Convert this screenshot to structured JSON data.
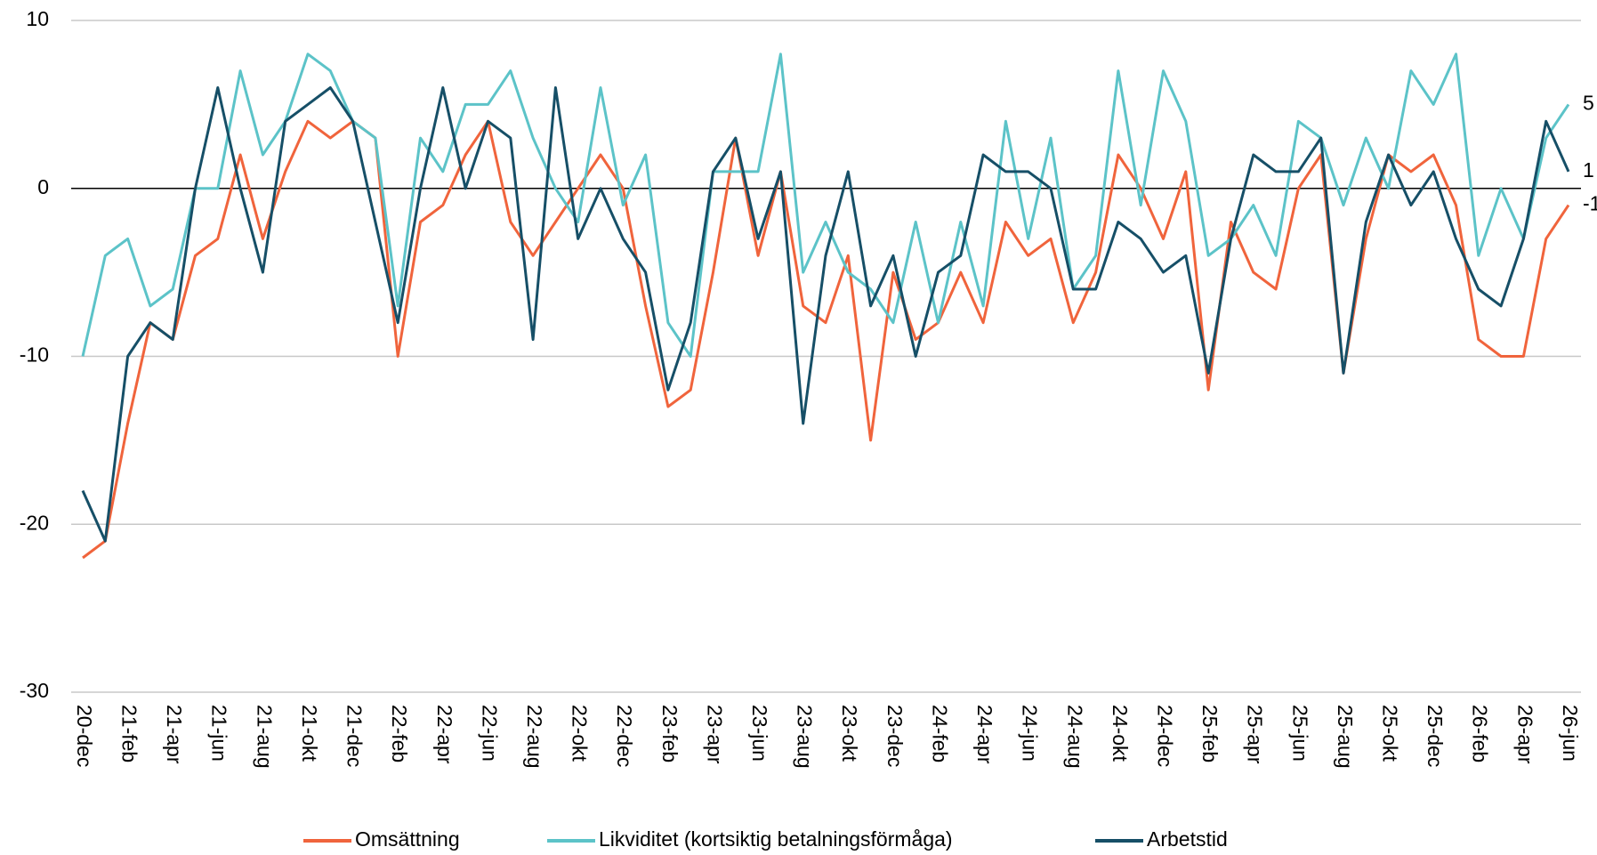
{
  "chart_data": {
    "type": "line",
    "categories": [
      "20-dec",
      null,
      "21-feb",
      null,
      "21-apr",
      null,
      "21-jun",
      null,
      "21-aug",
      null,
      "21-okt",
      null,
      "21-dec",
      null,
      "22-feb",
      null,
      "22-apr",
      null,
      "22-jun",
      null,
      "22-aug",
      null,
      "22-okt",
      null,
      "22-dec",
      null,
      "23-feb",
      null,
      "23-apr",
      null,
      "23-jun",
      null,
      "23-aug",
      null,
      "23-okt",
      null,
      "23-dec",
      null,
      "24-feb",
      null,
      "24-apr",
      null,
      "24-jun",
      null,
      "24-aug",
      null,
      "24-okt",
      null,
      "24-dec",
      null,
      "25-feb",
      null,
      "25-apr",
      null,
      "25-jun",
      null,
      "25-aug",
      null,
      "25-okt",
      null,
      "25-dec",
      null,
      "26-feb",
      null,
      "26-apr",
      null,
      "26-jun"
    ],
    "series": [
      {
        "name": "Omsättning",
        "color": "#f0643c",
        "values": [
          -22,
          -21,
          -14,
          -8,
          -9,
          -4,
          -3,
          2,
          -3,
          1,
          4,
          3,
          4,
          3,
          -10,
          -2,
          -1,
          2,
          4,
          -2,
          -4,
          -2,
          0,
          2,
          0,
          -7,
          -13,
          -12,
          -5,
          3,
          -4,
          1,
          -7,
          -8,
          -4,
          -15,
          -5,
          -9,
          -8,
          -5,
          -8,
          -2,
          -4,
          -3,
          -8,
          -5,
          2,
          0,
          -3,
          1,
          -12,
          -2,
          -5,
          -6,
          0,
          2,
          -11,
          -3,
          2,
          1,
          2,
          -1,
          -9,
          -10,
          -10,
          -3,
          -1
        ]
      },
      {
        "name": "Likviditet (kortsiktig betalningsförmåga)",
        "color": "#5cc3c8",
        "values": [
          -10,
          -4,
          -3,
          -7,
          -6,
          0,
          0,
          7,
          2,
          4,
          8,
          7,
          4,
          3,
          -7,
          3,
          1,
          5,
          5,
          7,
          3,
          0,
          -2,
          6,
          -1,
          2,
          -8,
          -10,
          1,
          1,
          1,
          8,
          -5,
          -2,
          -5,
          -6,
          -8,
          -2,
          -8,
          -2,
          -7,
          4,
          -3,
          3,
          -6,
          -4,
          7,
          -1,
          7,
          4,
          -4,
          -3,
          -1,
          -4,
          4,
          3,
          -1,
          3,
          0,
          7,
          5,
          8,
          -4,
          0,
          -3,
          3,
          5
        ]
      },
      {
        "name": "Arbetstid",
        "color": "#164f67",
        "values": [
          -18,
          -21,
          -10,
          -8,
          -9,
          0,
          6,
          0,
          -5,
          4,
          5,
          6,
          4,
          -2,
          -8,
          0,
          6,
          0,
          4,
          3,
          -9,
          6,
          -3,
          0,
          -3,
          -5,
          -12,
          -8,
          1,
          3,
          -3,
          1,
          -14,
          -4,
          1,
          -7,
          -4,
          -10,
          -5,
          -4,
          2,
          1,
          1,
          0,
          -6,
          -6,
          -2,
          -3,
          -5,
          -4,
          -11,
          -3,
          2,
          1,
          1,
          3,
          -11,
          -2,
          2,
          -1,
          1,
          -3,
          -6,
          -7,
          -3,
          4,
          1
        ]
      }
    ],
    "ylim": [
      -30,
      10
    ],
    "yticks": [
      -30,
      -20,
      -10,
      0,
      10
    ],
    "grid": true
  }
}
